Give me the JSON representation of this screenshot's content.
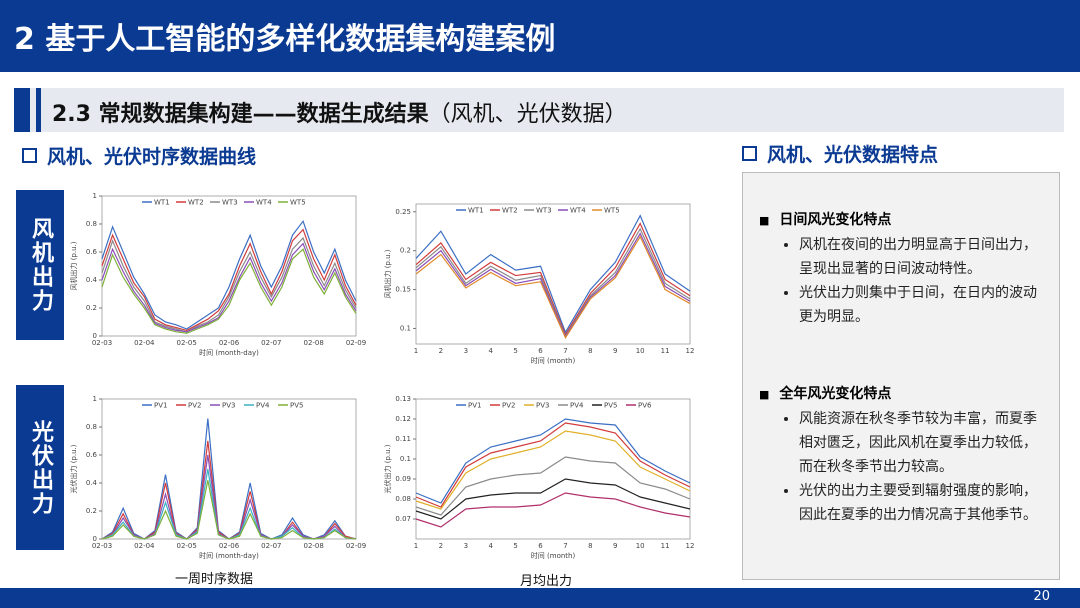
{
  "header": {
    "title": "2 基于人工智能的多样化数据集构建案例"
  },
  "section": {
    "title": "2.3 常规数据集构建——数据生成结果",
    "subtitle": "（风机、光伏数据）"
  },
  "left": {
    "heading": "风机、光伏时序数据曲线",
    "rows": [
      "风机出力",
      "光伏出力"
    ],
    "captions": [
      "一周时序数据",
      "月均出力"
    ]
  },
  "right": {
    "heading": "风机、光伏数据特点",
    "blocks": [
      {
        "title": "日间风光变化特点",
        "bullets": [
          "风机在夜间的出力明显高于日间出力，呈现出显著的日间波动特性。",
          "光伏出力则集中于日间，在日内的波动更为明显。"
        ]
      },
      {
        "title": "全年风光变化特点",
        "bullets": [
          "风能资源在秋冬季节较为丰富，而夏季相对匮乏，因此风机在夏季出力较低，而在秋冬季节出力较高。",
          "光伏的出力主要受到辐射强度的影响，因此在夏季的出力情况高于其他季节。"
        ]
      }
    ]
  },
  "page_number": "20",
  "chart_data": [
    {
      "type": "line",
      "xlabel": "时间 (month-day)",
      "ylabel": "风机出力 (p.u.)",
      "categories": [
        "02-03",
        null,
        null,
        null,
        "02-04",
        null,
        null,
        null,
        "02-05",
        null,
        null,
        null,
        "02-06",
        null,
        null,
        null,
        "02-07",
        null,
        null,
        null,
        "02-08",
        null,
        null,
        null,
        "02-09"
      ],
      "ylim": [
        0,
        1
      ],
      "yticks": [
        0,
        0.2,
        0.4,
        0.6,
        0.8,
        1
      ],
      "series": [
        {
          "name": "WT1",
          "color": "#3b6fc4",
          "values": [
            0.55,
            0.78,
            0.6,
            0.42,
            0.3,
            0.15,
            0.1,
            0.08,
            0.05,
            0.1,
            0.15,
            0.2,
            0.35,
            0.55,
            0.72,
            0.5,
            0.35,
            0.5,
            0.72,
            0.82,
            0.6,
            0.45,
            0.62,
            0.4,
            0.25
          ]
        },
        {
          "name": "WT2",
          "color": "#d23b3b",
          "values": [
            0.5,
            0.72,
            0.55,
            0.38,
            0.28,
            0.12,
            0.08,
            0.06,
            0.04,
            0.08,
            0.12,
            0.18,
            0.3,
            0.5,
            0.66,
            0.46,
            0.3,
            0.46,
            0.68,
            0.76,
            0.55,
            0.4,
            0.58,
            0.36,
            0.22
          ]
        },
        {
          "name": "WT3",
          "color": "#8a8a8a",
          "values": [
            0.45,
            0.68,
            0.5,
            0.35,
            0.25,
            0.1,
            0.07,
            0.05,
            0.03,
            0.07,
            0.1,
            0.15,
            0.28,
            0.46,
            0.6,
            0.42,
            0.28,
            0.42,
            0.62,
            0.7,
            0.5,
            0.36,
            0.52,
            0.33,
            0.2
          ]
        },
        {
          "name": "WT4",
          "color": "#8b4fb8",
          "values": [
            0.4,
            0.62,
            0.46,
            0.32,
            0.22,
            0.09,
            0.06,
            0.04,
            0.03,
            0.06,
            0.09,
            0.13,
            0.25,
            0.42,
            0.56,
            0.38,
            0.25,
            0.38,
            0.58,
            0.66,
            0.46,
            0.33,
            0.48,
            0.3,
            0.18
          ]
        },
        {
          "name": "WT5",
          "color": "#7fb03a",
          "values": [
            0.35,
            0.58,
            0.42,
            0.3,
            0.2,
            0.08,
            0.05,
            0.03,
            0.02,
            0.05,
            0.08,
            0.12,
            0.22,
            0.4,
            0.52,
            0.35,
            0.22,
            0.35,
            0.55,
            0.62,
            0.42,
            0.3,
            0.45,
            0.28,
            0.16
          ]
        }
      ]
    },
    {
      "type": "line",
      "xlabel": "时间 (month)",
      "ylabel": "风机出力 (p.u.)",
      "categories": [
        "1",
        "2",
        "3",
        "4",
        "5",
        "6",
        "7",
        "8",
        "9",
        "10",
        "11",
        "12"
      ],
      "ylim": [
        0.08,
        0.26
      ],
      "yticks": [
        0.1,
        0.15,
        0.2,
        0.25
      ],
      "series": [
        {
          "name": "WT1",
          "color": "#3b6fc4",
          "values": [
            0.19,
            0.225,
            0.17,
            0.195,
            0.175,
            0.18,
            0.095,
            0.15,
            0.185,
            0.245,
            0.17,
            0.148
          ]
        },
        {
          "name": "WT2",
          "color": "#d23b3b",
          "values": [
            0.182,
            0.21,
            0.163,
            0.185,
            0.168,
            0.172,
            0.092,
            0.145,
            0.178,
            0.235,
            0.163,
            0.142
          ]
        },
        {
          "name": "WT3",
          "color": "#8a8a8a",
          "values": [
            0.178,
            0.205,
            0.158,
            0.18,
            0.162,
            0.168,
            0.09,
            0.142,
            0.172,
            0.228,
            0.158,
            0.138
          ]
        },
        {
          "name": "WT4",
          "color": "#8b4fb8",
          "values": [
            0.174,
            0.2,
            0.155,
            0.176,
            0.158,
            0.164,
            0.089,
            0.14,
            0.168,
            0.222,
            0.154,
            0.135
          ]
        },
        {
          "name": "WT5",
          "color": "#e08a2a",
          "values": [
            0.17,
            0.195,
            0.152,
            0.172,
            0.155,
            0.16,
            0.088,
            0.138,
            0.165,
            0.218,
            0.15,
            0.132
          ]
        }
      ]
    },
    {
      "type": "line",
      "xlabel": "时间 (month-day)",
      "ylabel": "光伏出力 (p.u.)",
      "categories": [
        "02-03",
        null,
        null,
        null,
        "02-04",
        null,
        null,
        null,
        "02-05",
        null,
        null,
        null,
        "02-06",
        null,
        null,
        null,
        "02-07",
        null,
        null,
        null,
        "02-08",
        null,
        null,
        null,
        "02-09"
      ],
      "ylim": [
        0,
        1
      ],
      "yticks": [
        0,
        0.2,
        0.4,
        0.6,
        0.8,
        1
      ],
      "series": [
        {
          "name": "PV1",
          "color": "#3b6fc4",
          "values": [
            0,
            0.05,
            0.22,
            0.04,
            0,
            0.06,
            0.46,
            0.05,
            0,
            0.08,
            0.86,
            0.06,
            0,
            0.05,
            0.4,
            0.04,
            0,
            0.03,
            0.15,
            0.03,
            0,
            0.03,
            0.13,
            0.02,
            0
          ]
        },
        {
          "name": "PV2",
          "color": "#d23b3b",
          "values": [
            0,
            0.04,
            0.18,
            0.03,
            0,
            0.05,
            0.4,
            0.04,
            0,
            0.07,
            0.7,
            0.05,
            0,
            0.04,
            0.34,
            0.03,
            0,
            0.02,
            0.12,
            0.02,
            0,
            0.02,
            0.11,
            0.02,
            0
          ]
        },
        {
          "name": "PV3",
          "color": "#8b4fb8",
          "values": [
            0,
            0.03,
            0.15,
            0.03,
            0,
            0.04,
            0.32,
            0.03,
            0,
            0.06,
            0.6,
            0.04,
            0,
            0.03,
            0.28,
            0.03,
            0,
            0.02,
            0.1,
            0.02,
            0,
            0.02,
            0.09,
            0.01,
            0
          ]
        },
        {
          "name": "PV4",
          "color": "#3bb0c4",
          "values": [
            0,
            0.03,
            0.12,
            0.02,
            0,
            0.03,
            0.26,
            0.03,
            0,
            0.05,
            0.5,
            0.03,
            0,
            0.03,
            0.22,
            0.02,
            0,
            0.02,
            0.08,
            0.01,
            0,
            0.01,
            0.07,
            0.01,
            0
          ]
        },
        {
          "name": "PV5",
          "color": "#7fb03a",
          "values": [
            0,
            0.02,
            0.1,
            0.02,
            0,
            0.03,
            0.2,
            0.02,
            0,
            0.04,
            0.42,
            0.03,
            0,
            0.02,
            0.18,
            0.02,
            0,
            0.01,
            0.06,
            0.01,
            0,
            0.01,
            0.06,
            0.01,
            0
          ]
        }
      ]
    },
    {
      "type": "line",
      "xlabel": "时间 (month)",
      "ylabel": "光伏出力 (p.u.)",
      "categories": [
        "1",
        "2",
        "3",
        "4",
        "5",
        "6",
        "7",
        "8",
        "9",
        "10",
        "11",
        "12"
      ],
      "ylim": [
        0.06,
        0.13
      ],
      "yticks": [
        0.07,
        0.08,
        0.09,
        0.1,
        0.11,
        0.12,
        0.13
      ],
      "series": [
        {
          "name": "PV1",
          "color": "#3b6fc4",
          "values": [
            0.083,
            0.078,
            0.098,
            0.106,
            0.109,
            0.112,
            0.12,
            0.118,
            0.117,
            0.101,
            0.094,
            0.088
          ]
        },
        {
          "name": "PV2",
          "color": "#d23b3b",
          "values": [
            0.081,
            0.076,
            0.096,
            0.103,
            0.106,
            0.109,
            0.118,
            0.116,
            0.113,
            0.099,
            0.092,
            0.086
          ]
        },
        {
          "name": "PV3",
          "color": "#e0b02a",
          "values": [
            0.079,
            0.075,
            0.093,
            0.1,
            0.103,
            0.106,
            0.114,
            0.112,
            0.109,
            0.096,
            0.09,
            0.084
          ]
        },
        {
          "name": "PV4",
          "color": "#8a8a8a",
          "values": [
            0.076,
            0.072,
            0.086,
            0.09,
            0.092,
            0.093,
            0.101,
            0.099,
            0.098,
            0.088,
            0.085,
            0.08
          ]
        },
        {
          "name": "PV5",
          "color": "#222222",
          "values": [
            0.074,
            0.07,
            0.08,
            0.082,
            0.083,
            0.083,
            0.09,
            0.088,
            0.087,
            0.081,
            0.078,
            0.075
          ]
        },
        {
          "name": "PV6",
          "color": "#b0306a",
          "values": [
            0.07,
            0.066,
            0.075,
            0.076,
            0.076,
            0.077,
            0.083,
            0.081,
            0.08,
            0.076,
            0.073,
            0.071
          ]
        }
      ]
    }
  ]
}
